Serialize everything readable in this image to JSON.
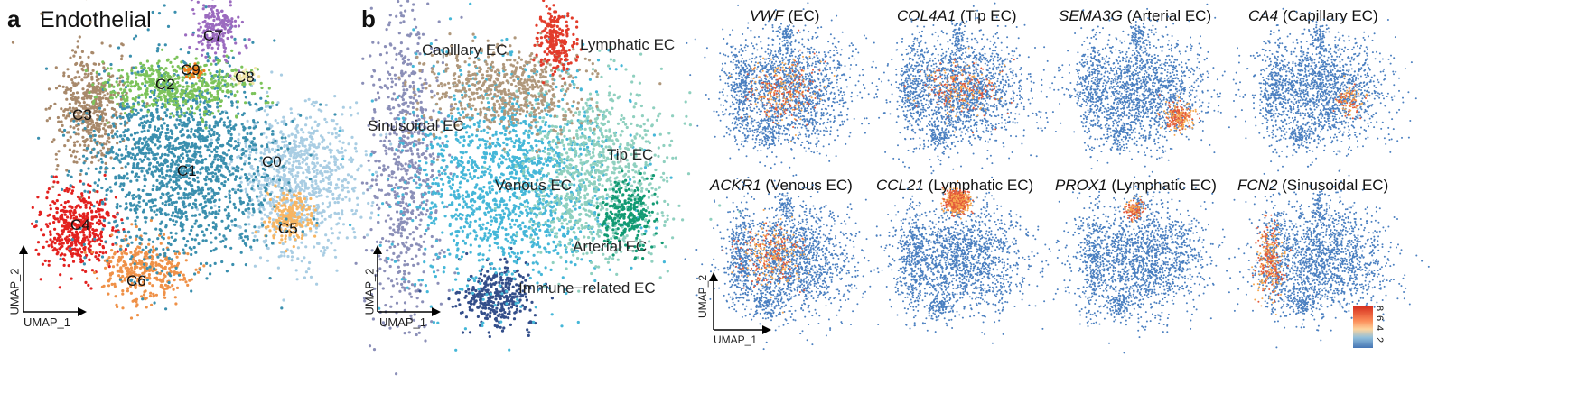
{
  "panel_a": {
    "letter": "a",
    "title": "Endothelial",
    "clusters": [
      {
        "label": "C0",
        "color": "#a9cde3"
      },
      {
        "label": "C1",
        "color": "#3a8fae"
      },
      {
        "label": "C2",
        "color": "#7cc35a"
      },
      {
        "label": "C3",
        "color": "#a8896b"
      },
      {
        "label": "C4",
        "color": "#e3211f"
      },
      {
        "label": "C5",
        "color": "#f7b562"
      },
      {
        "label": "C6",
        "color": "#ef9148"
      },
      {
        "label": "C7",
        "color": "#9b6bbf"
      },
      {
        "label": "C8",
        "color": "#f1e6a6"
      },
      {
        "label": "C9",
        "color": "#f07c1b"
      }
    ],
    "axes": {
      "x": "UMAP_1",
      "y": "UMAP_2"
    }
  },
  "panel_b": {
    "letter": "b",
    "cell_types": [
      {
        "label": "Capillary EC",
        "color": "#b0987c"
      },
      {
        "label": "Lymphatic EC",
        "color": "#e23b2a"
      },
      {
        "label": "Sinusoidal EC",
        "color": "#8b8fb8"
      },
      {
        "label": "Tip EC",
        "color": "#8fd0bf"
      },
      {
        "label": "Venous EC",
        "color": "#45b7d8"
      },
      {
        "label": "Arterial EC",
        "color": "#129a73"
      },
      {
        "label": "Immune−related EC",
        "color": "#334e8a"
      }
    ],
    "axes": {
      "x": "UMAP_1",
      "y": "UMAP_2"
    }
  },
  "feature_plots": [
    {
      "gene": "VWF",
      "cell_type": "(EC)"
    },
    {
      "gene": "COL4A1",
      "cell_type": "(Tip EC)"
    },
    {
      "gene": "SEMA3G",
      "cell_type": "(Arterial EC)"
    },
    {
      "gene": "CA4",
      "cell_type": "(Capillary EC)"
    },
    {
      "gene": "ACKR1",
      "cell_type": "(Venous EC)"
    },
    {
      "gene": "CCL21",
      "cell_type": "(Lymphatic EC)"
    },
    {
      "gene": "PROX1",
      "cell_type": "(Lymphatic EC)"
    },
    {
      "gene": "FCN2",
      "cell_type": "(Sinusoidal EC)"
    }
  ],
  "feature_axes": {
    "x": "UMAP_1",
    "y": "UMAP_2"
  },
  "colorbar": {
    "ticks": [
      "8",
      "6",
      "4",
      "2"
    ],
    "colors": {
      "high": "#d7301f",
      "mid": "#fdd49e",
      "low": "#4575b4"
    }
  },
  "feature_colors": {
    "base": "#4a7fc0",
    "hot1": "#f6a74f",
    "hot2": "#e3593a"
  }
}
